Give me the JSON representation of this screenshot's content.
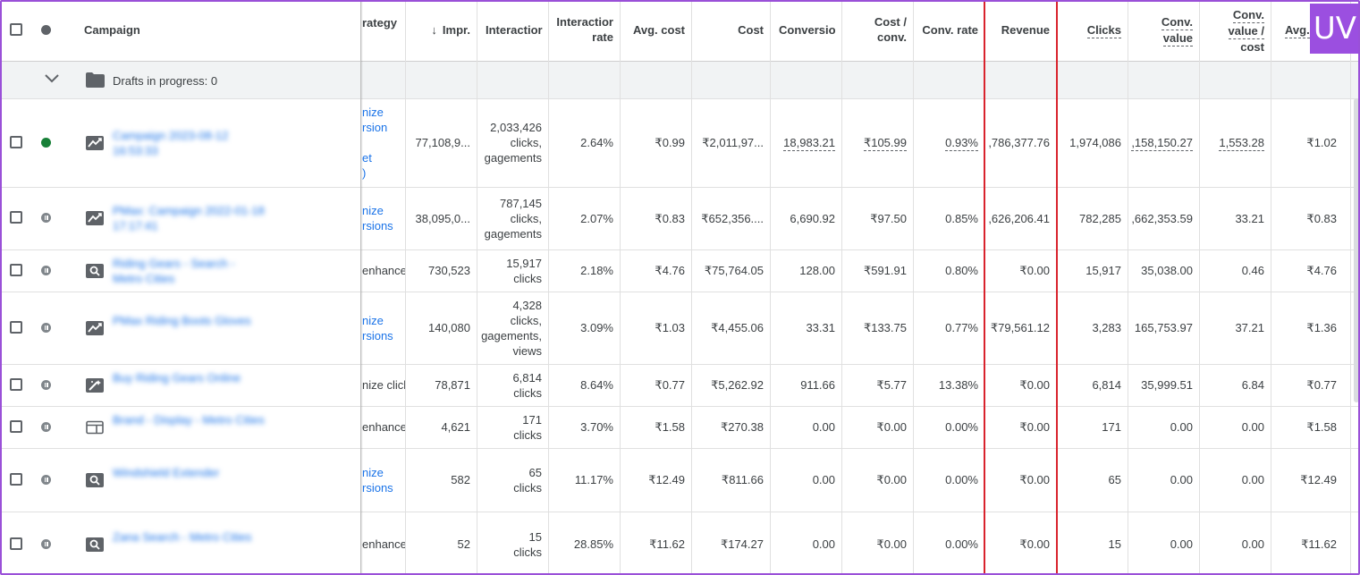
{
  "logo_text": "UV",
  "drafts_label": "Drafts in progress: 0",
  "headers": {
    "campaign": "Campaign",
    "strategy": "rategy",
    "impr": "Impr.",
    "impr_sort_icon": "↓",
    "interactions": "Interactior",
    "interaction_rate_1": "Interactior",
    "interaction_rate_2": "rate",
    "avg_cost": "Avg. cost",
    "cost": "Cost",
    "conversions": "Conversio",
    "cost_conv_1": "Cost /",
    "cost_conv_2": "conv.",
    "conv_rate": "Conv. rate",
    "revenue": "Revenue",
    "clicks": "Clicks",
    "conv_value_1": "Conv.",
    "conv_value_2": "value",
    "cvc_1": "Conv.",
    "cvc_2": "value /",
    "cvc_3": "cost",
    "avg_cpc": "Avg."
  },
  "rows": [
    {
      "name": "Campaign 2023-08-12 16:53:33",
      "status": "enabled",
      "type_icon": "performance-max-icon",
      "strategy": [
        "nize",
        "rsion",
        "",
        "et",
        ")"
      ],
      "impr": "77,108,9...",
      "interactions": [
        "2,033,426",
        "clicks,",
        "gagements"
      ],
      "interaction_rate": "2.64%",
      "avg_cost": "₹0.99",
      "cost": "₹2,011,97...",
      "conversions": "18,983.21",
      "cost_conv": "₹105.99",
      "conv_rate": "0.93%",
      "revenue": ",786,377.76",
      "clicks": "1,974,086",
      "conv_value": ",158,150.27",
      "conv_value_cost": "1,553.28",
      "avg_cpc": "₹1.02"
    },
    {
      "name": "PMax: Campaign 2022-01-18 17:17:41",
      "status": "paused",
      "type_icon": "performance-max-icon",
      "strategy": [
        "nize",
        "rsions"
      ],
      "impr": "38,095,0...",
      "interactions": [
        "787,145",
        "clicks,",
        "gagements"
      ],
      "interaction_rate": "2.07%",
      "avg_cost": "₹0.83",
      "cost": "₹652,356....",
      "conversions": "6,690.92",
      "cost_conv": "₹97.50",
      "conv_rate": "0.85%",
      "revenue": ",626,206.41",
      "clicks": "782,285",
      "conv_value": ",662,353.59",
      "conv_value_cost": "33.21",
      "avg_cpc": "₹0.83"
    },
    {
      "name": "Riding Gears - Search - Metro Cities",
      "status": "paused",
      "type_icon": "search-campaign-icon",
      "strategy": [
        "enhance"
      ],
      "impr": "730,523",
      "interactions": [
        "15,917",
        "clicks"
      ],
      "interaction_rate": "2.18%",
      "avg_cost": "₹4.76",
      "cost": "₹75,764.05",
      "conversions": "128.00",
      "cost_conv": "₹591.91",
      "conv_rate": "0.80%",
      "revenue": "₹0.00",
      "clicks": "15,917",
      "conv_value": "35,038.00",
      "conv_value_cost": "0.46",
      "avg_cpc": "₹4.76"
    },
    {
      "name": "PMax Riding Boots Gloves",
      "status": "paused",
      "type_icon": "performance-max-icon",
      "strategy": [
        "nize",
        "rsions"
      ],
      "impr": "140,080",
      "interactions": [
        "4,328",
        "clicks,",
        "gagements,",
        "views"
      ],
      "interaction_rate": "3.09%",
      "avg_cost": "₹1.03",
      "cost": "₹4,455.06",
      "conversions": "33.31",
      "cost_conv": "₹133.75",
      "conv_rate": "0.77%",
      "revenue": "₹79,561.12",
      "clicks": "3,283",
      "conv_value": "165,753.97",
      "conv_value_cost": "37.21",
      "avg_cpc": "₹1.36"
    },
    {
      "name": "Buy Riding Gears Online",
      "status": "paused",
      "type_icon": "smart-campaign-icon",
      "strategy": [
        "nize click"
      ],
      "impr": "78,871",
      "interactions": [
        "6,814",
        "clicks"
      ],
      "interaction_rate": "8.64%",
      "avg_cost": "₹0.77",
      "cost": "₹5,262.92",
      "conversions": "911.66",
      "cost_conv": "₹5.77",
      "conv_rate": "13.38%",
      "revenue": "₹0.00",
      "clicks": "6,814",
      "conv_value": "35,999.51",
      "conv_value_cost": "6.84",
      "avg_cpc": "₹0.77"
    },
    {
      "name": "Brand - Display - Metro Cities",
      "status": "paused",
      "type_icon": "display-campaign-icon",
      "strategy": [
        "enhance"
      ],
      "impr": "4,621",
      "interactions": [
        "171",
        "clicks"
      ],
      "interaction_rate": "3.70%",
      "avg_cost": "₹1.58",
      "cost": "₹270.38",
      "conversions": "0.00",
      "cost_conv": "₹0.00",
      "conv_rate": "0.00%",
      "revenue": "₹0.00",
      "clicks": "171",
      "conv_value": "0.00",
      "conv_value_cost": "0.00",
      "avg_cpc": "₹1.58"
    },
    {
      "name": "Windshield Extender",
      "status": "paused",
      "type_icon": "search-campaign-icon",
      "strategy": [
        "nize",
        "rsions"
      ],
      "impr": "582",
      "interactions": [
        "65",
        "clicks"
      ],
      "interaction_rate": "11.17%",
      "avg_cost": "₹12.49",
      "cost": "₹811.66",
      "conversions": "0.00",
      "cost_conv": "₹0.00",
      "conv_rate": "0.00%",
      "revenue": "₹0.00",
      "clicks": "65",
      "conv_value": "0.00",
      "conv_value_cost": "0.00",
      "avg_cpc": "₹12.49"
    },
    {
      "name": "Zana Search - Metro Cities",
      "status": "paused",
      "type_icon": "search-campaign-icon",
      "strategy": [
        "enhance"
      ],
      "impr": "52",
      "interactions": [
        "15",
        "clicks"
      ],
      "interaction_rate": "28.85%",
      "avg_cost": "₹11.62",
      "cost": "₹174.27",
      "conversions": "0.00",
      "cost_conv": "₹0.00",
      "conv_rate": "0.00%",
      "revenue": "₹0.00",
      "clicks": "15",
      "conv_value": "0.00",
      "conv_value_cost": "0.00",
      "avg_cpc": "₹11.62"
    }
  ],
  "colors": {
    "frame_border": "#9a50d8",
    "link_blue": "#1a73e8",
    "enabled_green": "#188038",
    "highlight_red": "#d9232d",
    "logo_purple": "#9b4fe0"
  }
}
